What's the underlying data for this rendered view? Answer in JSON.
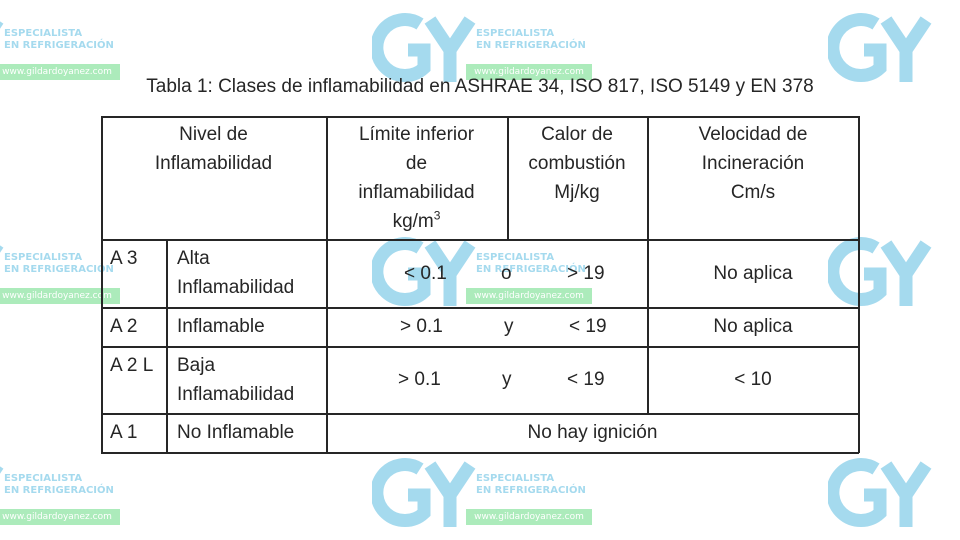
{
  "watermark": {
    "brand_line1": "ESPECIALISTA",
    "brand_line2": "EN REFRIGERACIÓN",
    "url": "www.gildardoyanez.com",
    "colors": {
      "blue": "#2ba8d8",
      "green": "#3bd15f"
    },
    "logo_icon": "gy-logo-icon"
  },
  "title": "Tabla 1: Clases de inflamabilidad en ASHRAE 34, ISO 817, ISO 5149 y EN 378",
  "table": {
    "headers": {
      "nivel": [
        "Nivel de",
        "Inflamabilidad"
      ],
      "limite": [
        "Límite inferior",
        "de",
        "inflamabilidad",
        "kg/m",
        "3"
      ],
      "calor": [
        "Calor de",
        "combustión",
        "Mj/kg"
      ],
      "velocidad": [
        "Velocidad de",
        "Incineración",
        "Cm/s"
      ]
    },
    "rows": [
      {
        "code": "A 3",
        "name": [
          "Alta",
          "Inflamabilidad"
        ],
        "limit": "< 0.1",
        "connector": "o",
        "heat": "> 19",
        "speed": "No aplica"
      },
      {
        "code": "A 2",
        "name": [
          "Inflamable"
        ],
        "limit": "> 0.1",
        "connector": "y",
        "heat": "< 19",
        "speed": "No aplica"
      },
      {
        "code": "A 2 L",
        "name": [
          "Baja",
          "Inflamabilidad"
        ],
        "limit": "> 0.1",
        "connector": "y",
        "heat": "< 19",
        "speed": "< 10"
      },
      {
        "code": "A 1",
        "name": [
          "No Inflamable"
        ],
        "merged": "No hay ignición"
      }
    ]
  }
}
